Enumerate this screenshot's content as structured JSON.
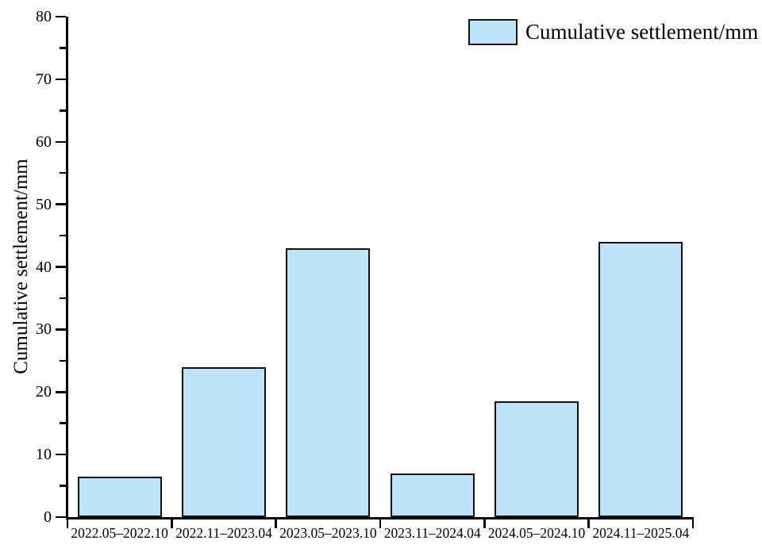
{
  "chart_data": {
    "type": "bar",
    "categories": [
      "2022.05–2022.10",
      "2022.11–2023.04",
      "2023.05–2023.10",
      "2023.11–2024.04",
      "2024.05–2024.10",
      "2024.11–2025.04"
    ],
    "values": [
      6.5,
      24,
      43,
      7,
      18.5,
      44
    ],
    "title": "",
    "xlabel": "",
    "ylabel": "Cumulative settlement/mm",
    "ylim": [
      0,
      80
    ],
    "ytick_step": 10,
    "yminor_step": 5,
    "grid": false,
    "legend_position": "top-right",
    "legend_label": "Cumulative settlement/mm",
    "bar_color": "#bde3f9",
    "bar_border_color": "#111111",
    "axis_color": "#000000"
  }
}
